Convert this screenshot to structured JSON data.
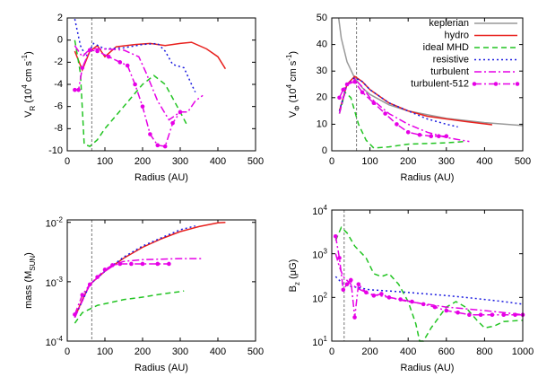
{
  "chart_data": [
    {
      "type": "line",
      "xlabel": "Radius (AU)",
      "ylabel": [
        {
          "text": "V"
        },
        {
          "text": "R",
          "pos": "sub"
        },
        {
          "text": " (10"
        },
        {
          "text": "4",
          "pos": "sup"
        },
        {
          "text": " cm s"
        },
        {
          "text": "-1",
          "pos": "sup"
        },
        {
          "text": ")"
        }
      ],
      "xlim": [
        0,
        500
      ],
      "xticks": [
        0,
        100,
        200,
        300,
        400,
        500
      ],
      "ylim": [
        -10,
        2
      ],
      "yticks": [
        -10,
        -8,
        -6,
        -4,
        -2,
        0,
        2
      ],
      "vline": 65,
      "series": [
        {
          "color": "#e8201d",
          "dash": "solid",
          "x": [
            20,
            40,
            60,
            80,
            100,
            130,
            180,
            220,
            260,
            300,
            330,
            370,
            400,
            420
          ],
          "values": [
            -1,
            -2.7,
            -1,
            -0.5,
            -1.5,
            -0.6,
            -0.4,
            -0.3,
            -0.5,
            -0.3,
            -0.2,
            -0.8,
            -1.5,
            -2.6
          ]
        },
        {
          "color": "#22c422",
          "dash": "dashed",
          "x": [
            20,
            35,
            45,
            60,
            80,
            100,
            150,
            200,
            230,
            260,
            300,
            320
          ],
          "values": [
            0,
            -3,
            -9.4,
            -9.6,
            -9,
            -8,
            -6,
            -4,
            -3.2,
            -4,
            -6.5,
            -7.8
          ]
        },
        {
          "color": "#1a1ae0",
          "dash": "dotted",
          "x": [
            20,
            35,
            50,
            70,
            100,
            150,
            200,
            240,
            260,
            280,
            310,
            330,
            340
          ],
          "values": [
            1.9,
            -0.5,
            -1.5,
            -0.3,
            -0.8,
            -0.7,
            -0.4,
            -0.3,
            -1,
            -2.2,
            -2.5,
            -4,
            -4.7
          ]
        },
        {
          "color": "#e600e6",
          "dash": "dashdot",
          "x": [
            20,
            40,
            60,
            100,
            150,
            190,
            210,
            240,
            270,
            300,
            320,
            340,
            360
          ],
          "values": [
            -0.5,
            -1.5,
            -0.8,
            -0.8,
            -0.9,
            -1.5,
            -3,
            -5.5,
            -7.2,
            -6.5,
            -6.5,
            -5.5,
            -5
          ]
        },
        {
          "color": "#e600e6",
          "dash": "dashdot",
          "marker": "circle",
          "x": [
            20,
            30,
            40,
            60,
            80,
            110,
            140,
            160,
            180,
            200,
            220,
            240,
            260,
            280,
            300
          ],
          "values": [
            -4.5,
            -4.5,
            -2.5,
            -0.9,
            -1,
            -1.5,
            -2,
            -2.3,
            -4,
            -6,
            -8.5,
            -9.5,
            -9.6,
            -7.5,
            -6.5
          ]
        }
      ]
    },
    {
      "type": "line",
      "xlabel": "Radius (AU)",
      "ylabel": [
        {
          "text": "V"
        },
        {
          "text": "Φ",
          "pos": "sub"
        },
        {
          "text": " (10"
        },
        {
          "text": "4",
          "pos": "sup"
        },
        {
          "text": " cm s"
        },
        {
          "text": "-1",
          "pos": "sup"
        },
        {
          "text": ")"
        }
      ],
      "xlim": [
        0,
        500
      ],
      "xticks": [
        0,
        100,
        200,
        300,
        400,
        500
      ],
      "ylim": [
        0,
        50
      ],
      "yticks": [
        0,
        10,
        20,
        30,
        40,
        50
      ],
      "vline": 65,
      "legend": "top-right",
      "series": [
        {
          "name": "keplerian",
          "color": "#999999",
          "dash": "solid",
          "x": [
            18,
            25,
            40,
            60,
            80,
            100,
            150,
            200,
            300,
            400,
            500
          ],
          "values": [
            50,
            42.4,
            33.5,
            27.4,
            23.7,
            21.2,
            17.3,
            15,
            12.2,
            10.6,
            9.5
          ]
        },
        {
          "name": "hydro",
          "color": "#e8201d",
          "dash": "solid",
          "x": [
            20,
            40,
            60,
            80,
            100,
            150,
            200,
            250,
            300,
            350,
            420
          ],
          "values": [
            15,
            25,
            28,
            26,
            23,
            18,
            15,
            13,
            12,
            11,
            9.8
          ]
        },
        {
          "name": "ideal MHD",
          "color": "#22c422",
          "dash": "dashed",
          "x": [
            20,
            35,
            50,
            70,
            90,
            110,
            150,
            200,
            300,
            350
          ],
          "values": [
            14,
            22,
            20,
            10,
            4,
            1,
            1.5,
            2.5,
            3,
            3.5
          ]
        },
        {
          "name": "resistive",
          "color": "#1a1ae0",
          "dash": "dotted",
          "x": [
            20,
            40,
            60,
            80,
            100,
            150,
            200,
            250,
            300,
            330
          ],
          "values": [
            15,
            25,
            27.5,
            26,
            23,
            18,
            15,
            12,
            10,
            9
          ]
        },
        {
          "name": "turbulent",
          "color": "#e600e6",
          "dash": "dashdot",
          "x": [
            20,
            40,
            60,
            80,
            100,
            150,
            200,
            250,
            300,
            340,
            360
          ],
          "values": [
            14,
            25,
            27,
            24,
            20,
            14,
            10,
            7,
            5,
            4,
            3.5
          ]
        },
        {
          "name": "turbulent-512",
          "color": "#e600e6",
          "dash": "dashdot",
          "marker": "circle",
          "x": [
            20,
            30,
            40,
            60,
            80,
            110,
            140,
            170,
            200,
            230,
            260,
            280,
            300
          ],
          "values": [
            20,
            23,
            25,
            26,
            22,
            18,
            14,
            10,
            7,
            6,
            5.5,
            5.5,
            5.5
          ]
        }
      ]
    },
    {
      "type": "line",
      "xlabel": "Radius (AU)",
      "ylabel": [
        {
          "text": "mass (M"
        },
        {
          "text": "SUN",
          "pos": "sub"
        },
        {
          "text": ")"
        }
      ],
      "xlim": [
        0,
        500
      ],
      "xticks": [
        0,
        100,
        200,
        300,
        400,
        500
      ],
      "ylim": [
        0.0001,
        0.011
      ],
      "ylog": true,
      "yticks": [
        {
          "value": 0.0001,
          "label": [
            "10",
            "-4"
          ]
        },
        {
          "value": 0.001,
          "label": [
            "10",
            "-3"
          ]
        },
        {
          "value": 0.01,
          "label": [
            "10",
            "-2"
          ]
        }
      ],
      "vline": 65,
      "series": [
        {
          "color": "#e8201d",
          "dash": "solid",
          "x": [
            20,
            40,
            60,
            100,
            150,
            200,
            250,
            300,
            350,
            400,
            420
          ],
          "values": [
            0.00025,
            0.0005,
            0.0009,
            0.0015,
            0.0025,
            0.0038,
            0.0053,
            0.007,
            0.0085,
            0.0098,
            0.01
          ]
        },
        {
          "color": "#22c422",
          "dash": "dashed",
          "x": [
            20,
            40,
            80,
            150,
            200,
            250,
            300,
            310
          ],
          "values": [
            0.0002,
            0.0003,
            0.0004,
            0.0005,
            0.00055,
            0.00062,
            0.00068,
            0.0007
          ]
        },
        {
          "color": "#1a1ae0",
          "dash": "dotted",
          "x": [
            20,
            60,
            100,
            150,
            200,
            250,
            300,
            340
          ],
          "values": [
            0.00025,
            0.0009,
            0.0015,
            0.0026,
            0.004,
            0.0055,
            0.0075,
            0.0087
          ]
        },
        {
          "color": "#e600e6",
          "dash": "dashdot",
          "x": [
            20,
            60,
            100,
            130,
            150,
            200,
            250,
            300,
            360
          ],
          "values": [
            0.00025,
            0.0009,
            0.0015,
            0.002,
            0.0022,
            0.00235,
            0.0024,
            0.00245,
            0.00245
          ]
        },
        {
          "color": "#e600e6",
          "dash": "dashdot",
          "marker": "circle",
          "x": [
            20,
            40,
            60,
            80,
            100,
            120,
            140,
            170,
            200,
            240,
            270
          ],
          "values": [
            0.00028,
            0.0006,
            0.0009,
            0.0012,
            0.0016,
            0.0019,
            0.002,
            0.002,
            0.002,
            0.002,
            0.002
          ]
        }
      ]
    },
    {
      "type": "line",
      "xlabel": "Radius (AU)",
      "ylabel": [
        {
          "text": "B"
        },
        {
          "text": "z",
          "pos": "sub"
        },
        {
          "text": " (μG)"
        }
      ],
      "xlim": [
        0,
        1000
      ],
      "xticks": [
        0,
        200,
        400,
        600,
        800,
        1000
      ],
      "ylim": [
        10,
        10000
      ],
      "ylog": true,
      "yticks": [
        {
          "value": 10,
          "label": [
            "10",
            "1"
          ]
        },
        {
          "value": 100,
          "label": [
            "10",
            "2"
          ]
        },
        {
          "value": 1000,
          "label": [
            "10",
            "3"
          ]
        },
        {
          "value": 10000,
          "label": [
            "10",
            "4"
          ]
        }
      ],
      "vline": 65,
      "series": [
        {
          "color": "#22c422",
          "dash": "dashed",
          "x": [
            20,
            50,
            80,
            120,
            180,
            220,
            260,
            300,
            350,
            400,
            440,
            460,
            480,
            520,
            600,
            650,
            700,
            760,
            800,
            850,
            900,
            1000
          ],
          "values": [
            2000,
            4000,
            3000,
            1500,
            800,
            350,
            300,
            350,
            200,
            80,
            25,
            10,
            10,
            20,
            60,
            80,
            60,
            30,
            20,
            22,
            28,
            30
          ]
        },
        {
          "color": "#1a1ae0",
          "dash": "dotted",
          "x": [
            20,
            60,
            100,
            200,
            300,
            400,
            500,
            600,
            700,
            800,
            900,
            1000
          ],
          "values": [
            300,
            200,
            180,
            150,
            140,
            130,
            120,
            110,
            100,
            90,
            80,
            70
          ]
        },
        {
          "color": "#e600e6",
          "dash": "dashdot",
          "x": [
            20,
            40,
            60,
            100,
            150,
            200,
            300,
            400,
            500,
            600,
            700,
            800,
            900,
            1000
          ],
          "values": [
            1000,
            500,
            300,
            200,
            150,
            120,
            100,
            80,
            70,
            60,
            55,
            50,
            45,
            40
          ]
        },
        {
          "color": "#e600e6",
          "dash": "dashdot",
          "marker": "circle",
          "x": [
            20,
            40,
            60,
            80,
            100,
            120,
            140,
            180,
            220,
            260,
            300,
            360,
            420,
            480,
            540,
            600,
            660,
            720,
            780,
            840,
            900,
            960,
            1000
          ],
          "values": [
            2500,
            800,
            150,
            200,
            250,
            35,
            200,
            130,
            110,
            120,
            100,
            90,
            80,
            70,
            60,
            50,
            45,
            40,
            40,
            40,
            40,
            40,
            40
          ]
        }
      ]
    }
  ]
}
